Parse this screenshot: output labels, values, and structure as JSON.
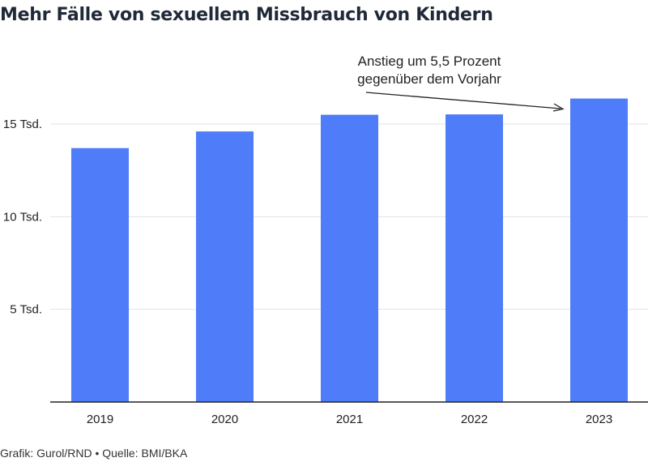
{
  "chart_data": {
    "type": "bar",
    "title": "Mehr Fälle von sexuellem Missbrauch von Kindern",
    "categories": [
      "2019",
      "2020",
      "2021",
      "2022",
      "2023"
    ],
    "values": [
      13700,
      14600,
      15500,
      15520,
      16375
    ],
    "ylim": [
      0,
      20000
    ],
    "yticks": [
      {
        "value": 5000,
        "label": "5 Tsd."
      },
      {
        "value": 10000,
        "label": "10 Tsd."
      },
      {
        "value": 15000,
        "label": "15 Tsd."
      }
    ],
    "grid": true,
    "bar_color": "#4f7df9",
    "annotation": {
      "lines": [
        "Anstieg um 5,5 Prozent",
        "gegenüber dem Vorjahr"
      ],
      "target_category": "2023"
    }
  },
  "footer": {
    "credit": "Grafik: Gurol/RND • Quelle: BMI/BKA"
  }
}
